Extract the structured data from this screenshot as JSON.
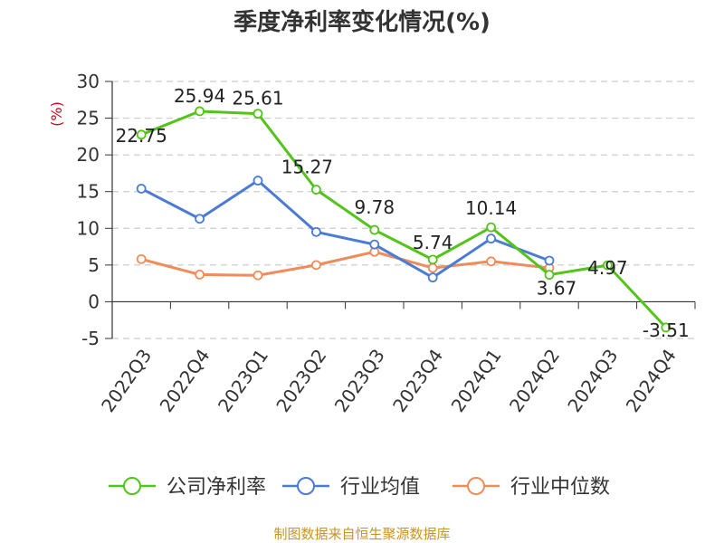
{
  "chart_data": {
    "type": "line",
    "title": "季度净利率变化情况(%)",
    "ylabel": "(%)",
    "categories": [
      "2022Q3",
      "2022Q4",
      "2023Q1",
      "2023Q2",
      "2023Q3",
      "2023Q4",
      "2024Q1",
      "2024Q2",
      "2024Q3",
      "2024Q4"
    ],
    "ylim": [
      -5,
      30
    ],
    "yticks": [
      -5,
      0,
      5,
      10,
      15,
      20,
      25,
      30
    ],
    "grid": true,
    "legend_position": "bottom",
    "series": [
      {
        "name": "公司净利率",
        "color": "#52c41a",
        "values": [
          22.75,
          25.94,
          25.61,
          15.27,
          9.78,
          5.74,
          10.14,
          3.67,
          4.97,
          -3.51
        ],
        "labels": [
          "22.75",
          "25.94",
          "25.61",
          "15.27",
          "9.78",
          "5.74",
          "10.14",
          "3.67",
          "4.97",
          "-3.51"
        ]
      },
      {
        "name": "行业均值",
        "color": "#4a7bd5",
        "values": [
          15.4,
          11.3,
          16.5,
          9.5,
          7.8,
          3.3,
          8.6,
          5.6,
          null,
          null
        ]
      },
      {
        "name": "行业中位数",
        "color": "#f08c5a",
        "values": [
          5.8,
          3.7,
          3.6,
          5.0,
          6.8,
          4.6,
          5.5,
          4.6,
          null,
          null
        ]
      }
    ]
  },
  "source_text": "制图数据来自恒生聚源数据库",
  "colors": {
    "ylabel": "#d0021b",
    "source": "#c8941f",
    "grid": "#cccccc",
    "axis": "#333333"
  }
}
